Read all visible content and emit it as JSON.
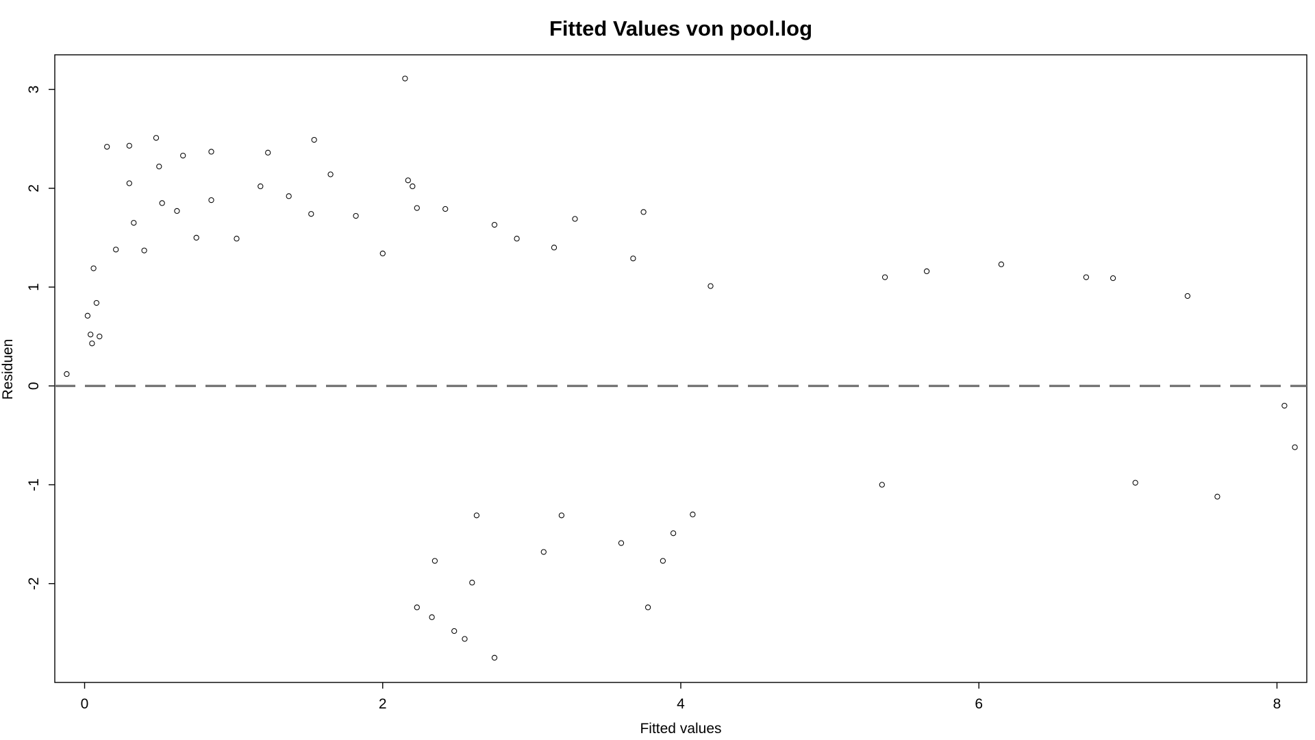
{
  "chart_data": {
    "type": "scatter",
    "title": "Fitted Values von pool.log",
    "xlabel": "Fitted values",
    "ylabel": "Residuen",
    "xlim": [
      -0.2,
      8.2
    ],
    "ylim": [
      -3.0,
      3.35
    ],
    "x_ticks": [
      0,
      2,
      4,
      6,
      8
    ],
    "y_ticks": [
      -2,
      -1,
      0,
      1,
      2,
      3
    ],
    "x_tick_labels": [
      "0",
      "2",
      "4",
      "6",
      "8"
    ],
    "y_tick_labels": [
      "-2",
      "-1",
      "0",
      "1",
      "2",
      "3"
    ],
    "reference_line": {
      "y": 0,
      "style": "dashed",
      "color": "#707070"
    },
    "point_style": {
      "shape": "open-circle",
      "color": "#000000"
    },
    "grid": false,
    "legend": "none",
    "series": [
      {
        "points": [
          [
            -0.12,
            0.12
          ],
          [
            0.15,
            2.42
          ],
          [
            0.3,
            2.43
          ],
          [
            0.48,
            2.51
          ],
          [
            0.66,
            2.33
          ],
          [
            0.85,
            2.37
          ],
          [
            1.23,
            2.36
          ],
          [
            1.54,
            2.49
          ],
          [
            2.15,
            3.11
          ],
          [
            0.3,
            2.05
          ],
          [
            0.5,
            2.22
          ],
          [
            0.21,
            1.38
          ],
          [
            0.33,
            1.65
          ],
          [
            0.52,
            1.85
          ],
          [
            0.62,
            1.77
          ],
          [
            0.85,
            1.88
          ],
          [
            1.18,
            2.02
          ],
          [
            1.37,
            1.92
          ],
          [
            1.52,
            1.74
          ],
          [
            1.65,
            2.14
          ],
          [
            1.82,
            1.72
          ],
          [
            2.17,
            2.08
          ],
          [
            2.2,
            2.02
          ],
          [
            2.23,
            1.8
          ],
          [
            2.42,
            1.79
          ],
          [
            2.75,
            1.63
          ],
          [
            2.9,
            1.49
          ],
          [
            3.29,
            1.69
          ],
          [
            3.75,
            1.76
          ],
          [
            3.68,
            1.29
          ],
          [
            3.15,
            1.4
          ],
          [
            2.0,
            1.34
          ],
          [
            1.02,
            1.49
          ],
          [
            0.75,
            1.5
          ],
          [
            0.4,
            1.37
          ],
          [
            4.2,
            1.01
          ],
          [
            5.37,
            1.1
          ],
          [
            5.65,
            1.16
          ],
          [
            6.15,
            1.23
          ],
          [
            6.72,
            1.1
          ],
          [
            6.9,
            1.09
          ],
          [
            7.4,
            0.91
          ],
          [
            3.95,
            -1.49
          ],
          [
            3.88,
            -1.77
          ],
          [
            3.78,
            -2.24
          ],
          [
            2.75,
            -2.75
          ],
          [
            2.6,
            -1.99
          ],
          [
            2.55,
            -2.56
          ],
          [
            2.48,
            -2.48
          ],
          [
            2.33,
            -2.34
          ],
          [
            2.23,
            -2.24
          ],
          [
            2.63,
            -1.31
          ],
          [
            2.35,
            -1.77
          ],
          [
            3.08,
            -1.68
          ],
          [
            3.2,
            -1.31
          ],
          [
            3.6,
            -1.59
          ],
          [
            4.08,
            -1.3
          ],
          [
            5.35,
            -1.0
          ],
          [
            7.05,
            -0.98
          ],
          [
            7.6,
            -1.12
          ],
          [
            8.12,
            -0.62
          ],
          [
            8.05,
            -0.2
          ],
          [
            0.02,
            0.71
          ],
          [
            0.04,
            0.52
          ],
          [
            0.05,
            0.43
          ],
          [
            0.06,
            1.19
          ],
          [
            0.08,
            0.84
          ],
          [
            0.1,
            0.5
          ]
        ]
      }
    ]
  }
}
